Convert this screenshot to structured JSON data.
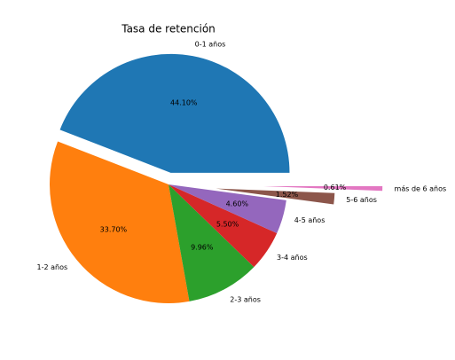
{
  "chart_data": {
    "type": "pie",
    "title": "Tasa de retención",
    "categories": [
      "0-1 años",
      "1-2 años",
      "2-3 años",
      "3-4 años",
      "4-5 años",
      "5-6 años",
      "más de 6 años"
    ],
    "values": [
      44.1,
      33.7,
      9.96,
      5.5,
      4.6,
      1.52,
      0.61
    ],
    "value_labels": [
      "44.10%",
      "33.70%",
      "9.96%",
      "5.50%",
      "4.60%",
      "1.52%",
      "0.61%"
    ],
    "colors": [
      "#1f77b4",
      "#ff7f0e",
      "#2ca02c",
      "#d62728",
      "#9467bd",
      "#8c564b",
      "#e377c2"
    ],
    "explode": [
      0.1,
      0,
      0,
      0,
      0,
      0.4,
      0.8
    ]
  }
}
